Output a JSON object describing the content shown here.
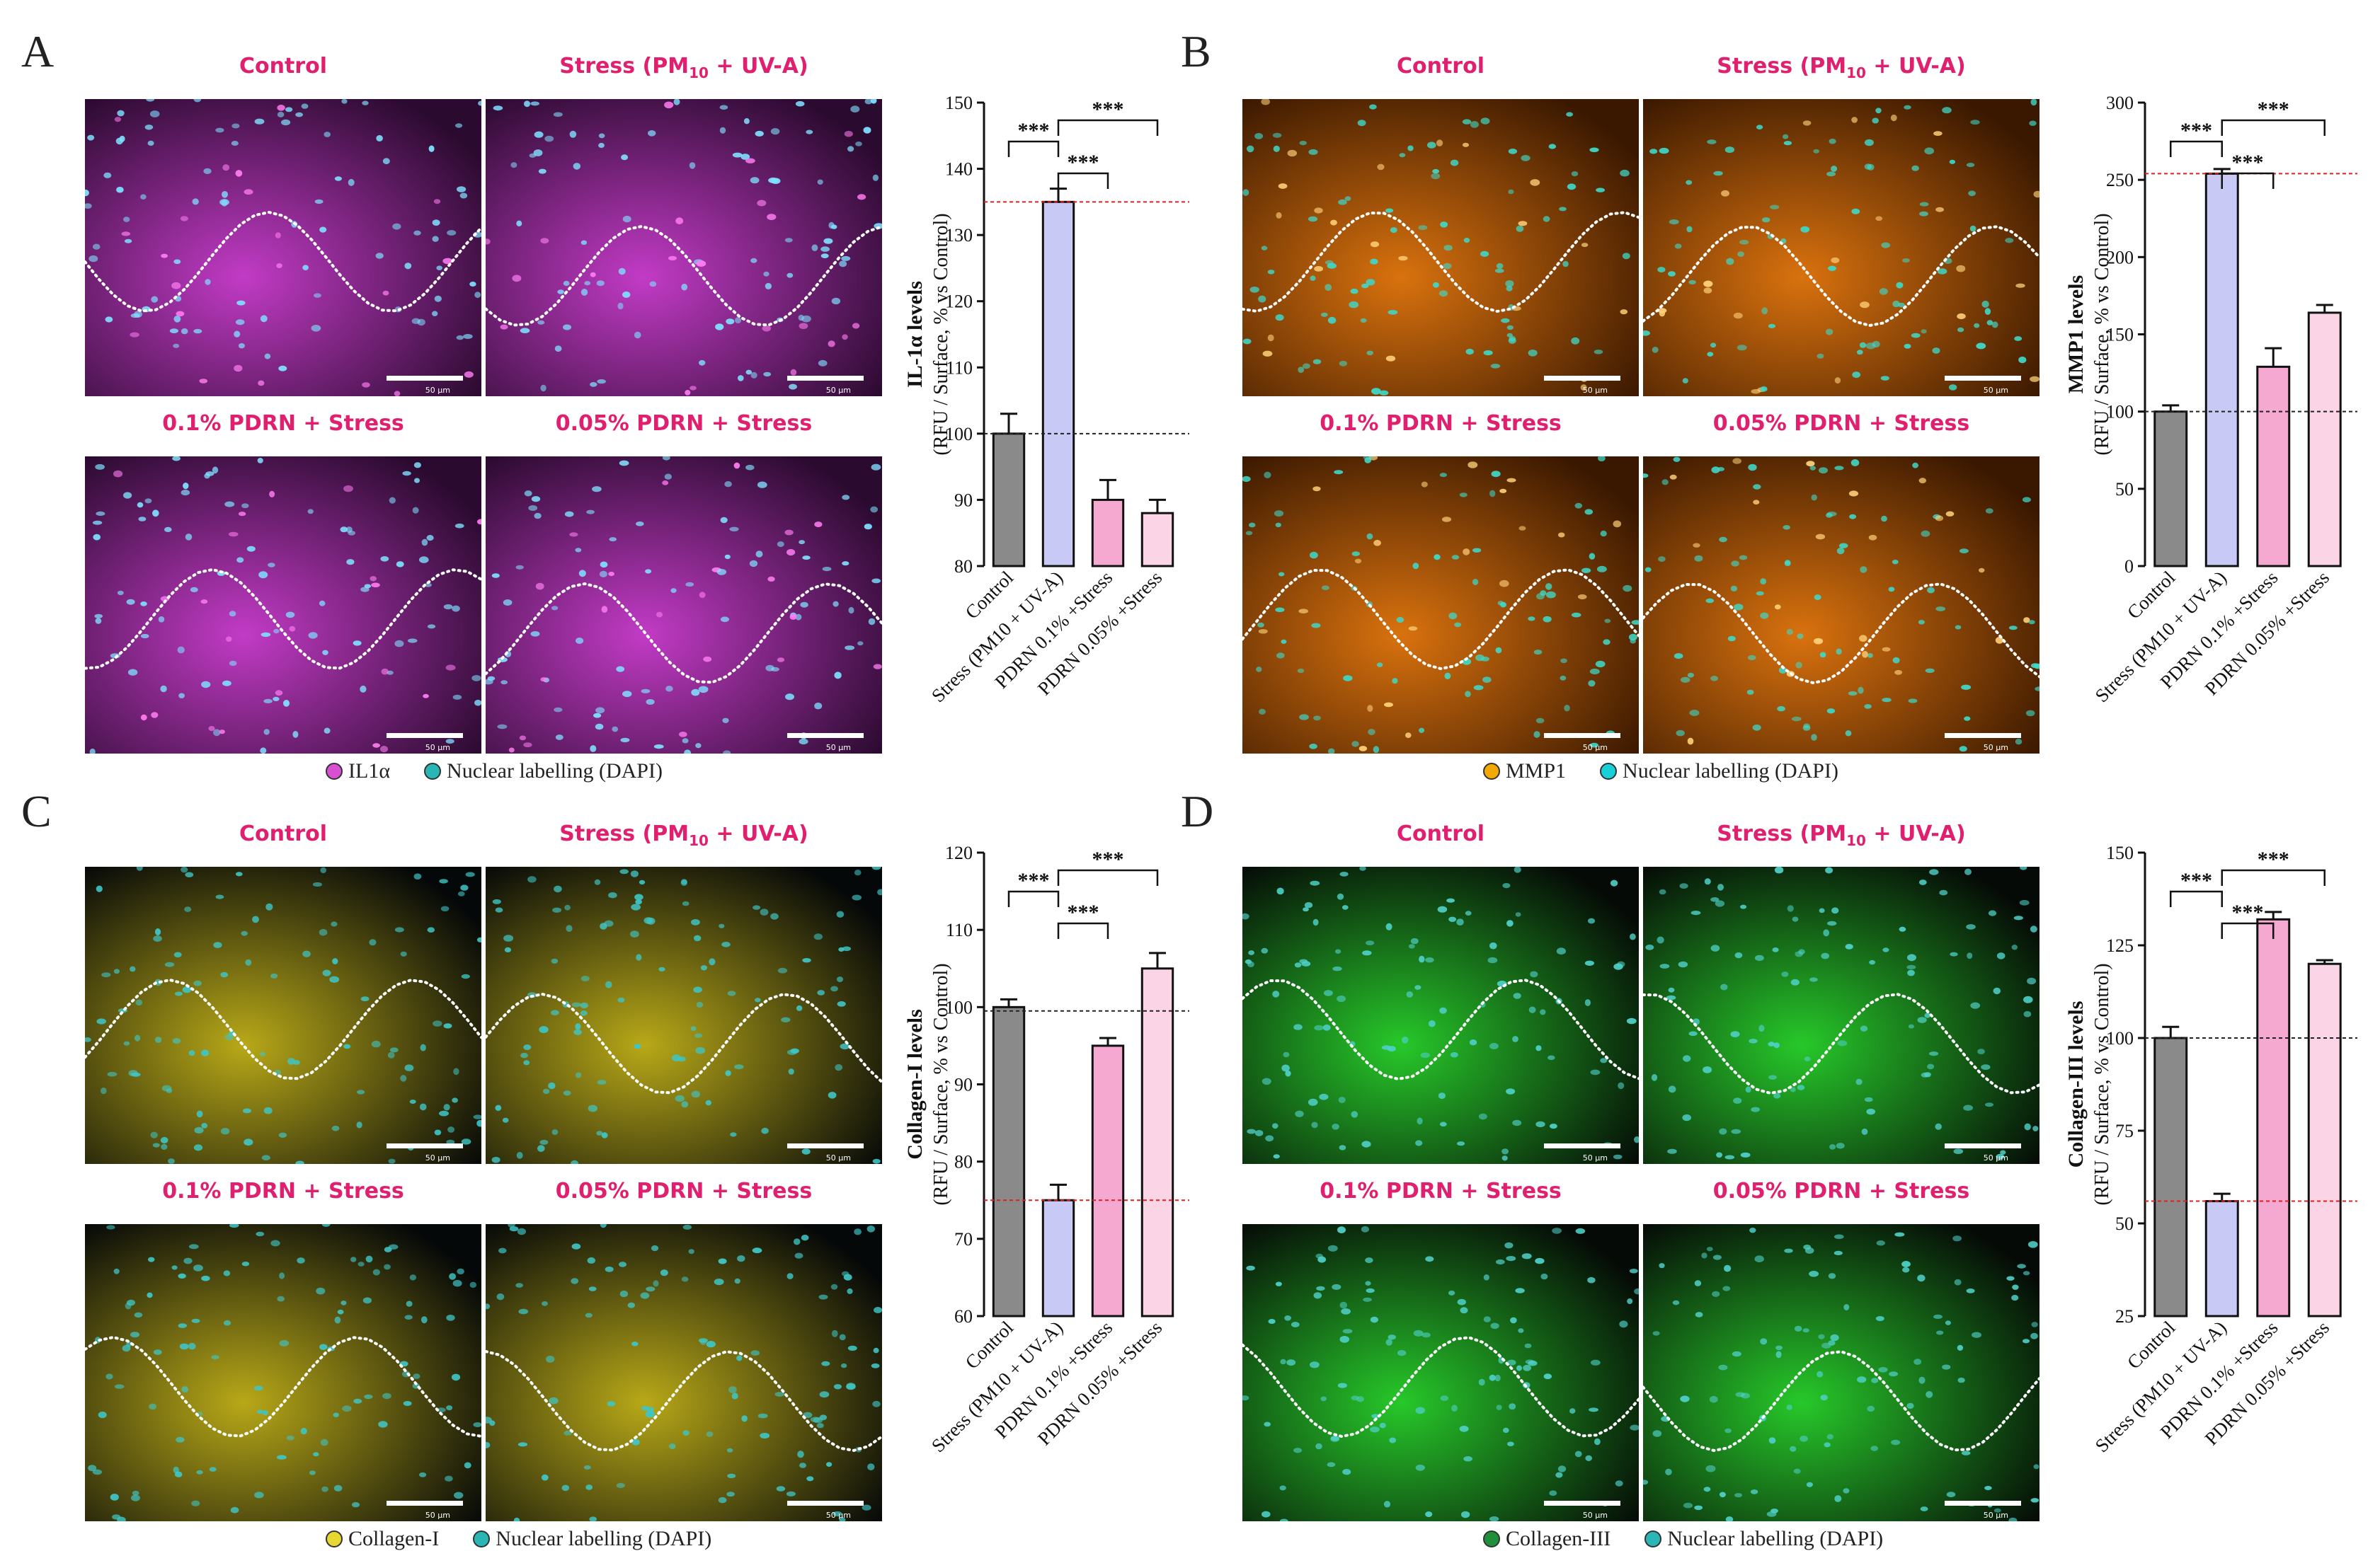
{
  "panels": [
    {
      "letter": "A",
      "image_titles": [
        "Control",
        "Stress (PM",
        "10",
        " + UV-A)",
        "0.1% PDRN + Stress",
        "0.05% PDRN + Stress"
      ],
      "scale_label": "50 µm",
      "legend": [
        {
          "label": "IL1α",
          "color": "#d94fd2"
        },
        {
          "label": "Nuclear labelling (DAPI)",
          "color": "#2bb6b6"
        }
      ],
      "colors": {
        "tissue": "#c23bc6",
        "tissue_dark": "#2a0a2e",
        "nuclei": "#7fe0ff",
        "nuclei_alt": "#ff7cf2"
      }
    },
    {
      "letter": "B",
      "image_titles": [
        "Control",
        "Stress (PM",
        "10",
        " + UV-A)",
        "0.1% PDRN + Stress",
        "0.05% PDRN + Stress"
      ],
      "scale_label": "50 µm",
      "legend": [
        {
          "label": "MMP1",
          "color": "#f2a900"
        },
        {
          "label": "Nuclear labelling (DAPI)",
          "color": "#1ad0d8"
        }
      ],
      "colors": {
        "tissue": "#d9720e",
        "tissue_dark": "#3a1800",
        "nuclei": "#3fd8c8",
        "nuclei_alt": "#ffd27a"
      }
    },
    {
      "letter": "C",
      "image_titles": [
        "Control",
        "Stress (PM",
        "10",
        " + UV-A)",
        "0.1% PDRN + Stress",
        "0.05% PDRN + Stress"
      ],
      "scale_label": "50 µm",
      "legend": [
        {
          "label": "Collagen-I",
          "color": "#e6d830"
        },
        {
          "label": "Nuclear labelling (DAPI)",
          "color": "#2bb6b6"
        }
      ],
      "colors": {
        "tissue": "#b8a818",
        "tissue_dark": "#050808",
        "nuclei": "#3fc6c6",
        "nuclei_alt": "#3fc6c6"
      }
    },
    {
      "letter": "D",
      "image_titles": [
        "Control",
        "Stress (PM",
        "10",
        " + UV-A)",
        "0.1% PDRN + Stress",
        "0.05% PDRN + Stress"
      ],
      "scale_label": "50 µm",
      "legend": [
        {
          "label": "Collagen-III",
          "color": "#1f8f3a"
        },
        {
          "label": "Nuclear labelling (DAPI)",
          "color": "#2bb6b6"
        }
      ],
      "colors": {
        "tissue": "#27c82a",
        "tissue_dark": "#050a06",
        "nuclei": "#4fd0c8",
        "nuclei_alt": "#4fd0c8"
      }
    }
  ],
  "chart_data": [
    {
      "type": "bar",
      "panel": "A",
      "categories": [
        "Control",
        "Stress (PM10 + UV-A)",
        "PDRN 0.1% +Stress",
        "PDRN 0.05% +Stress"
      ],
      "values": [
        100,
        135,
        90,
        88
      ],
      "errors": [
        3,
        2,
        3,
        2
      ],
      "ylabel": "IL-1α levels",
      "ylabel2": "(RFU / Surface, % vs Control)",
      "ylim": [
        80,
        150
      ],
      "yticks": [
        80,
        90,
        100,
        110,
        120,
        130,
        140,
        150
      ],
      "ref_black": 100,
      "ref_red": 135,
      "significance": [
        "***",
        "***",
        "***"
      ],
      "bar_colors": [
        "#8a8a8a",
        "#c9c9f5",
        "#f5a8d0",
        "#fbd5e6"
      ]
    },
    {
      "type": "bar",
      "panel": "B",
      "categories": [
        "Control",
        "Stress (PM10 + UV-A)",
        "PDRN 0.1% +Stress",
        "PDRN 0.05% +Stress"
      ],
      "values": [
        100,
        254,
        129,
        164
      ],
      "errors": [
        4,
        3,
        12,
        5
      ],
      "ylabel": "MMP1 levels",
      "ylabel2": "(RFU / Surface, % vs Control)",
      "ylim": [
        0,
        300
      ],
      "yticks": [
        0,
        50,
        100,
        150,
        200,
        250,
        300
      ],
      "ref_black": 100,
      "ref_red": 254,
      "significance": [
        "***",
        "***",
        "***"
      ],
      "bar_colors": [
        "#8a8a8a",
        "#c9c9f5",
        "#f5a8d0",
        "#fbd5e6"
      ]
    },
    {
      "type": "bar",
      "panel": "C",
      "categories": [
        "Control",
        "Stress (PM10 + UV-A)",
        "PDRN 0.1% +Stress",
        "PDRN 0.05% +Stress"
      ],
      "values": [
        100,
        75,
        95,
        105
      ],
      "errors": [
        1,
        2,
        1,
        2
      ],
      "ylabel": "Collagen-I levels",
      "ylabel2": "(RFU / Surface, % vs Control)",
      "ylim": [
        60,
        120
      ],
      "yticks": [
        60,
        70,
        80,
        90,
        100,
        110,
        120
      ],
      "ref_black": 99.5,
      "ref_red": 75,
      "significance": [
        "***",
        "***",
        "***"
      ],
      "bar_colors": [
        "#8a8a8a",
        "#c9c9f5",
        "#f5a8d0",
        "#fbd5e6"
      ]
    },
    {
      "type": "bar",
      "panel": "D",
      "categories": [
        "Control",
        "Stress (PM10 + UV-A)",
        "PDRN 0.1% +Stress",
        "PDRN 0.05% +Stress"
      ],
      "values": [
        100,
        56,
        132,
        120
      ],
      "errors": [
        3,
        2,
        2,
        1
      ],
      "ylabel": "Collagen-III levels",
      "ylabel2": "(RFU / Surface, % vs Control)",
      "ylim": [
        25,
        150
      ],
      "yticks": [
        25,
        50,
        75,
        100,
        125,
        150
      ],
      "ref_black": 100,
      "ref_red": 56,
      "significance": [
        "***",
        "***",
        "***"
      ],
      "bar_colors": [
        "#8a8a8a",
        "#c9c9f5",
        "#f5a8d0",
        "#fbd5e6"
      ]
    }
  ]
}
